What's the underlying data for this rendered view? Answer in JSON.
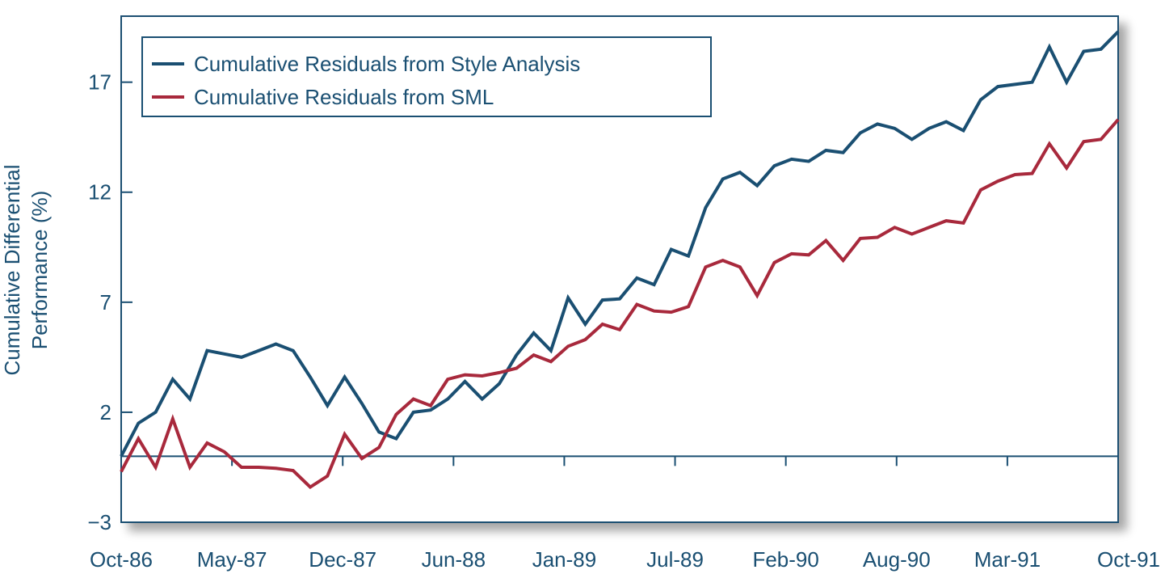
{
  "chart_data": {
    "type": "line",
    "title": "",
    "xlabel": "",
    "ylabel_lines": [
      "Cumulative Differential",
      "Performance (%)"
    ],
    "x_tick_labels": [
      "Oct-86",
      "May-87",
      "Dec-87",
      "Jun-88",
      "Jan-89",
      "Jul-89",
      "Feb-90",
      "Aug-90",
      "Mar-91",
      "Oct-91"
    ],
    "y_ticks": [
      17,
      12,
      7,
      2,
      -3
    ],
    "y_tick_labels": [
      "17",
      "12",
      "7",
      "2",
      "−3"
    ],
    "ylim": [
      -3,
      20
    ],
    "grid": false,
    "zero_line": 0,
    "legend_position": "top-left",
    "series": [
      {
        "name": "Cumulative Residuals from Style Analysis",
        "color": "#1a4f72",
        "values": [
          0.0,
          1.5,
          2.0,
          3.5,
          2.6,
          4.8,
          4.65,
          4.5,
          4.8,
          5.1,
          4.8,
          3.6,
          2.3,
          3.6,
          2.4,
          1.1,
          0.8,
          2.0,
          2.1,
          2.6,
          3.4,
          2.6,
          3.3,
          4.6,
          5.6,
          4.8,
          7.2,
          6.0,
          7.1,
          7.15,
          8.1,
          7.8,
          9.4,
          9.1,
          11.3,
          12.6,
          12.9,
          12.3,
          13.2,
          13.5,
          13.4,
          13.9,
          13.8,
          14.7,
          15.1,
          14.9,
          14.4,
          14.9,
          15.2,
          14.8,
          16.2,
          16.8,
          16.9,
          17.0,
          18.6,
          17.0,
          18.4,
          18.5,
          19.3
        ]
      },
      {
        "name": "Cumulative Residuals from SML",
        "color": "#a8293c",
        "values": [
          -0.7,
          0.8,
          -0.5,
          1.7,
          -0.5,
          0.6,
          0.2,
          -0.5,
          -0.5,
          -0.55,
          -0.65,
          -1.4,
          -0.9,
          1.0,
          -0.1,
          0.4,
          1.9,
          2.6,
          2.3,
          3.5,
          3.7,
          3.65,
          3.8,
          4.0,
          4.6,
          4.3,
          5.0,
          5.3,
          6.0,
          5.75,
          6.9,
          6.6,
          6.55,
          6.8,
          8.6,
          8.9,
          8.6,
          7.3,
          8.8,
          9.2,
          9.15,
          9.8,
          8.9,
          9.9,
          9.95,
          10.4,
          10.1,
          10.4,
          10.7,
          10.6,
          12.1,
          12.5,
          12.8,
          12.85,
          14.2,
          13.1,
          14.3,
          14.4,
          15.3
        ]
      }
    ]
  }
}
